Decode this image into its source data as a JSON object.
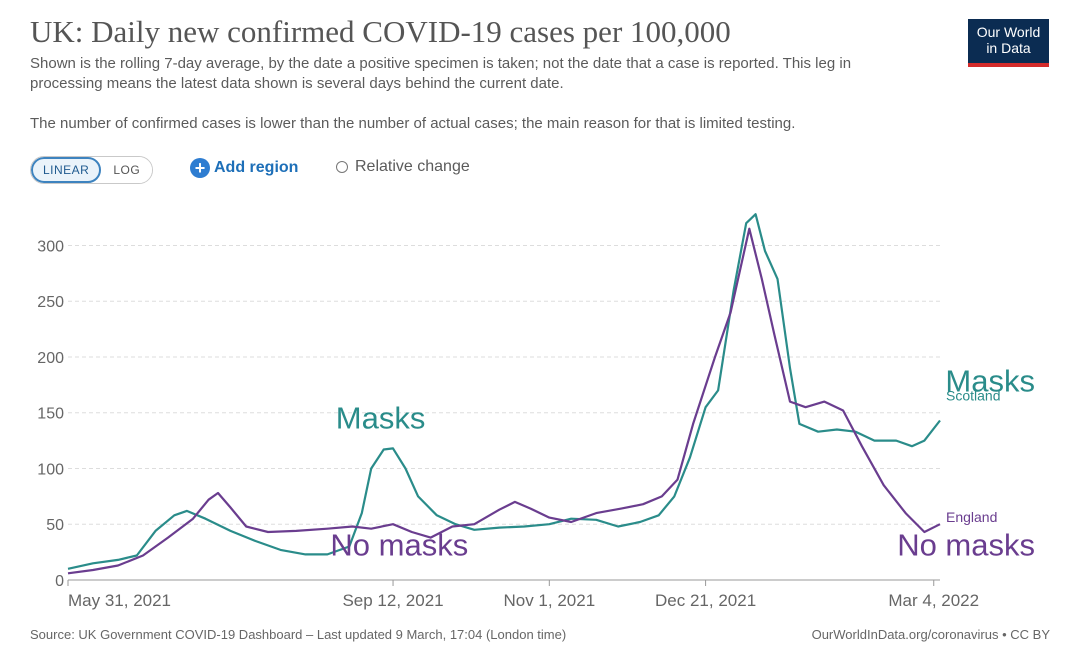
{
  "header": {
    "title": "UK: Daily new confirmed COVID-19 cases per 100,000",
    "subtitle": "Shown is the rolling 7-day average, by the date a positive specimen is taken; not the date that a case is reported. This leg in processing means the latest data shown is several days behind the current date.",
    "note": "The number of confirmed cases is lower than the number of actual cases; the main reason for that is limited testing.",
    "logo_line1": "Our World",
    "logo_line2": "in Data"
  },
  "controls": {
    "linear_label": "LINEAR",
    "log_label": "LOG",
    "add_region_label": "Add region",
    "add_region_icon": "+",
    "relative_label": "Relative change"
  },
  "footer": {
    "source": "Source: UK Government COVID-19 Dashboard – Last updated 9 March, 17:04 (London time)",
    "credit": "OurWorldInData.org/coronavirus • CC BY"
  },
  "colors": {
    "scotland": "#2a8c8a",
    "england": "#6a3d8f",
    "grid": "#dddddd",
    "axis": "#666666"
  },
  "annotations": [
    {
      "text": "Masks",
      "series": "scotland",
      "anchor_date": "2021-09-08",
      "anchor_value": 136,
      "size": "large"
    },
    {
      "text": "No masks",
      "series": "england",
      "anchor_date": "2021-09-14",
      "anchor_value": 22,
      "size": "large"
    },
    {
      "text": "Masks",
      "series": "scotland",
      "anchor_date": "2022-02-28",
      "anchor_value": 169,
      "size": "large"
    },
    {
      "text": "No masks",
      "series": "england",
      "anchor_date": "2022-03-02",
      "anchor_value": 22,
      "size": "large"
    }
  ],
  "chart_data": {
    "type": "line",
    "title": "UK: Daily new confirmed COVID-19 cases per 100,000",
    "xlabel": "",
    "ylabel": "",
    "ylim": [
      0,
      330
    ],
    "yticks": [
      0,
      50,
      100,
      150,
      200,
      250,
      300
    ],
    "xlim": [
      "2021-05-31",
      "2022-03-06"
    ],
    "xticks": [
      {
        "date": "2021-05-31",
        "label": "May 31, 2021"
      },
      {
        "date": "2021-09-12",
        "label": "Sep 12, 2021"
      },
      {
        "date": "2021-11-01",
        "label": "Nov 1, 2021"
      },
      {
        "date": "2021-12-21",
        "label": "Dec 21, 2021"
      },
      {
        "date": "2022-03-04",
        "label": "Mar 4, 2022"
      }
    ],
    "grid": true,
    "series": [
      {
        "name": "Scotland",
        "key": "scotland",
        "label": "Scotland",
        "points": [
          {
            "date": "2021-05-31",
            "value": 10
          },
          {
            "date": "2021-06-08",
            "value": 15
          },
          {
            "date": "2021-06-16",
            "value": 18
          },
          {
            "date": "2021-06-22",
            "value": 22
          },
          {
            "date": "2021-06-28",
            "value": 44
          },
          {
            "date": "2021-07-04",
            "value": 58
          },
          {
            "date": "2021-07-08",
            "value": 62
          },
          {
            "date": "2021-07-14",
            "value": 55
          },
          {
            "date": "2021-07-22",
            "value": 44
          },
          {
            "date": "2021-07-30",
            "value": 35
          },
          {
            "date": "2021-08-07",
            "value": 27
          },
          {
            "date": "2021-08-15",
            "value": 23
          },
          {
            "date": "2021-08-22",
            "value": 23
          },
          {
            "date": "2021-08-29",
            "value": 30
          },
          {
            "date": "2021-09-02",
            "value": 60
          },
          {
            "date": "2021-09-05",
            "value": 100
          },
          {
            "date": "2021-09-09",
            "value": 117
          },
          {
            "date": "2021-09-12",
            "value": 118
          },
          {
            "date": "2021-09-16",
            "value": 100
          },
          {
            "date": "2021-09-20",
            "value": 75
          },
          {
            "date": "2021-09-26",
            "value": 58
          },
          {
            "date": "2021-10-02",
            "value": 50
          },
          {
            "date": "2021-10-08",
            "value": 45
          },
          {
            "date": "2021-10-16",
            "value": 47
          },
          {
            "date": "2021-10-24",
            "value": 48
          },
          {
            "date": "2021-11-01",
            "value": 50
          },
          {
            "date": "2021-11-08",
            "value": 55
          },
          {
            "date": "2021-11-16",
            "value": 54
          },
          {
            "date": "2021-11-23",
            "value": 48
          },
          {
            "date": "2021-11-30",
            "value": 52
          },
          {
            "date": "2021-12-06",
            "value": 58
          },
          {
            "date": "2021-12-11",
            "value": 75
          },
          {
            "date": "2021-12-16",
            "value": 110
          },
          {
            "date": "2021-12-21",
            "value": 155
          },
          {
            "date": "2021-12-25",
            "value": 170
          },
          {
            "date": "2021-12-30",
            "value": 260
          },
          {
            "date": "2022-01-03",
            "value": 320
          },
          {
            "date": "2022-01-06",
            "value": 328
          },
          {
            "date": "2022-01-09",
            "value": 295
          },
          {
            "date": "2022-01-13",
            "value": 270
          },
          {
            "date": "2022-01-17",
            "value": 190
          },
          {
            "date": "2022-01-20",
            "value": 140
          },
          {
            "date": "2022-01-26",
            "value": 133
          },
          {
            "date": "2022-02-01",
            "value": 135
          },
          {
            "date": "2022-02-07",
            "value": 133
          },
          {
            "date": "2022-02-13",
            "value": 125
          },
          {
            "date": "2022-02-20",
            "value": 125
          },
          {
            "date": "2022-02-25",
            "value": 120
          },
          {
            "date": "2022-03-01",
            "value": 125
          },
          {
            "date": "2022-03-06",
            "value": 143
          }
        ]
      },
      {
        "name": "England",
        "key": "england",
        "label": "England",
        "points": [
          {
            "date": "2021-05-31",
            "value": 6
          },
          {
            "date": "2021-06-08",
            "value": 9
          },
          {
            "date": "2021-06-16",
            "value": 13
          },
          {
            "date": "2021-06-24",
            "value": 22
          },
          {
            "date": "2021-07-02",
            "value": 38
          },
          {
            "date": "2021-07-10",
            "value": 55
          },
          {
            "date": "2021-07-15",
            "value": 72
          },
          {
            "date": "2021-07-18",
            "value": 78
          },
          {
            "date": "2021-07-22",
            "value": 65
          },
          {
            "date": "2021-07-27",
            "value": 48
          },
          {
            "date": "2021-08-03",
            "value": 43
          },
          {
            "date": "2021-08-12",
            "value": 44
          },
          {
            "date": "2021-08-22",
            "value": 46
          },
          {
            "date": "2021-08-30",
            "value": 48
          },
          {
            "date": "2021-09-05",
            "value": 46
          },
          {
            "date": "2021-09-12",
            "value": 50
          },
          {
            "date": "2021-09-18",
            "value": 43
          },
          {
            "date": "2021-09-24",
            "value": 38
          },
          {
            "date": "2021-10-01",
            "value": 48
          },
          {
            "date": "2021-10-08",
            "value": 50
          },
          {
            "date": "2021-10-16",
            "value": 63
          },
          {
            "date": "2021-10-21",
            "value": 70
          },
          {
            "date": "2021-10-26",
            "value": 64
          },
          {
            "date": "2021-11-01",
            "value": 56
          },
          {
            "date": "2021-11-08",
            "value": 52
          },
          {
            "date": "2021-11-16",
            "value": 60
          },
          {
            "date": "2021-11-24",
            "value": 64
          },
          {
            "date": "2021-12-01",
            "value": 68
          },
          {
            "date": "2021-12-07",
            "value": 75
          },
          {
            "date": "2021-12-12",
            "value": 90
          },
          {
            "date": "2021-12-17",
            "value": 140
          },
          {
            "date": "2021-12-24",
            "value": 200
          },
          {
            "date": "2021-12-29",
            "value": 240
          },
          {
            "date": "2022-01-04",
            "value": 315
          },
          {
            "date": "2022-01-08",
            "value": 270
          },
          {
            "date": "2022-01-12",
            "value": 220
          },
          {
            "date": "2022-01-17",
            "value": 160
          },
          {
            "date": "2022-01-22",
            "value": 155
          },
          {
            "date": "2022-01-28",
            "value": 160
          },
          {
            "date": "2022-02-03",
            "value": 152
          },
          {
            "date": "2022-02-09",
            "value": 120
          },
          {
            "date": "2022-02-16",
            "value": 85
          },
          {
            "date": "2022-02-23",
            "value": 60
          },
          {
            "date": "2022-03-01",
            "value": 43
          },
          {
            "date": "2022-03-06",
            "value": 50
          }
        ]
      }
    ]
  }
}
